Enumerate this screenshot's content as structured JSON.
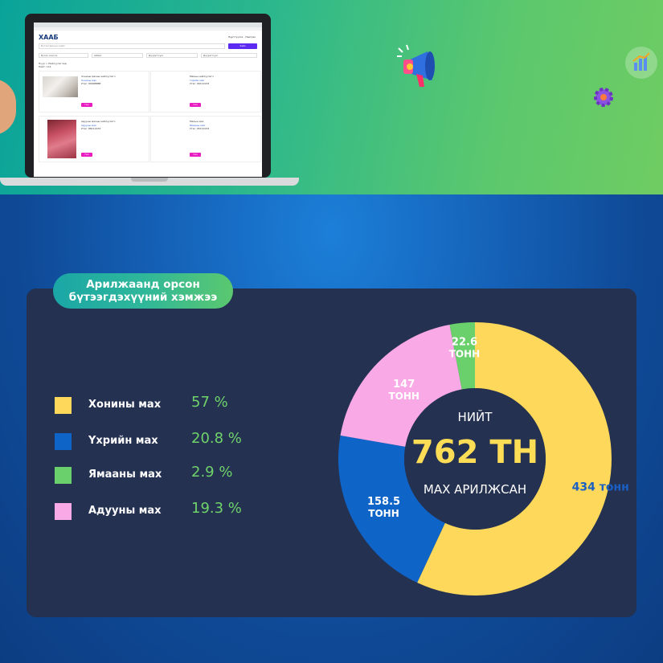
{
  "banner": {
    "screen": {
      "logo": "ХААБ",
      "nav_items": [
        "Бүртгүүлэх",
        "Нэвтрэх"
      ],
      "search_placeholder": "Бүтээгдэхүүн хайх",
      "search_button": "Хайх",
      "filters": [
        "Бүсээ сонгох",
        "Аймаг",
        "Дүүрэг/сум",
        "Дүүрэг/сум"
      ],
      "breadcrumb": "Нүүр > Нийлүүлэгчид",
      "result_count": "Нийт: 114",
      "cards": [
        {
          "title": "Хонины махны нийлүүлэгч",
          "name": "Хонины мах",
          "phone": "Утас: 99998888",
          "button": "Үзэх"
        },
        {
          "title": "Махны нийлүүлэгч",
          "name": "Үхрийн мах",
          "phone": "Утас: 99112233",
          "button": "Үзэх"
        },
        {
          "title": "Адууны махны нийлүүлэгч",
          "name": "Адууны мах",
          "phone": "Утас: 88112233",
          "button": "Үзэх"
        },
        {
          "title": "Малын мах",
          "name": "Ямааны мах",
          "phone": "Утас: 95112233",
          "button": "Үзэх"
        }
      ]
    }
  },
  "pill": {
    "line1": "Арилжаанд орсон",
    "line2": "бүтээгдэхүүний хэмжээ"
  },
  "legend": [
    {
      "label": "Хонины мах",
      "pct": "57 %",
      "color": "#fdd85a"
    },
    {
      "label": "Үхрийн мах",
      "pct": "20.8 %",
      "color": "#0f64c8"
    },
    {
      "label": "Ямааны мах",
      "pct": "2.9 %",
      "color": "#6ad06c"
    },
    {
      "label": "Адууны мах",
      "pct": "19.3 %",
      "color": "#f9a9e6"
    }
  ],
  "center": {
    "top": "НИЙТ",
    "value": "762 ТН",
    "bottom": "МАХ АРИЛЖСАН"
  },
  "chart_data": {
    "type": "pie",
    "title": "Арилжаанд орсон бүтээгдэхүүний хэмжээ",
    "total_label": "762 ТН",
    "slices": [
      {
        "name": "Хонины мах",
        "value": 434,
        "label": "434 тонн",
        "percent": 57,
        "color": "#fdd85a",
        "label_color": "#1a5fc4"
      },
      {
        "name": "Үхрийн мах",
        "value": 158.5,
        "label": "158.5 тонн",
        "percent": 20.8,
        "color": "#0f64c8",
        "label_color": "#ffffff"
      },
      {
        "name": "Адууны мах",
        "value": 147,
        "label": "147 тонн",
        "percent": 19.3,
        "color": "#f9a9e6",
        "label_color": "#ffffff"
      },
      {
        "name": "Ямааны мах",
        "value": 22.6,
        "label": "22.6 тонн",
        "percent": 2.9,
        "color": "#6ad06c",
        "label_color": "#ffffff"
      }
    ]
  }
}
